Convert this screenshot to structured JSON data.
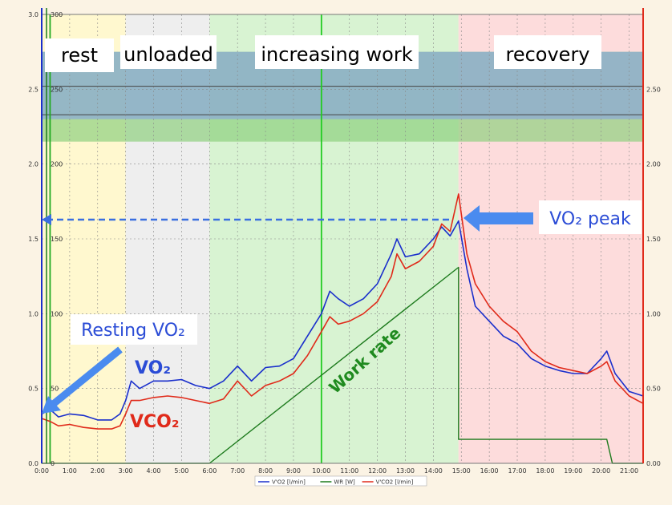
{
  "chart_data": {
    "type": "line",
    "x_unit": "time (mm:ss)",
    "x_ticks": [
      "0:00",
      "1:00",
      "2:00",
      "3:00",
      "4:00",
      "5:00",
      "6:00",
      "7:00",
      "8:00",
      "9:00",
      "10:00",
      "11:00",
      "12:00",
      "13:00",
      "14:00",
      "15:00",
      "16:00",
      "17:00",
      "18:00",
      "19:00",
      "20:00",
      "21:00"
    ],
    "xlim": [
      0,
      21.5
    ],
    "y_left_ticks": [
      "0.0",
      "0.5",
      "1.0",
      "1.5",
      "2.0",
      "2.5",
      "3.0"
    ],
    "y_left_lim": [
      0,
      3.0
    ],
    "y_mid_ticks": [
      "0",
      "50",
      "100",
      "150",
      "200",
      "250",
      "300"
    ],
    "y_mid_lim": [
      0,
      300
    ],
    "y_right_ticks": [
      "0.00",
      "0.50",
      "1.00",
      "1.50",
      "2.00",
      "2.50"
    ],
    "phases": [
      {
        "label": "rest",
        "start": 0,
        "end": 3,
        "color": "#fff8cf"
      },
      {
        "label": "unloaded",
        "start": 3,
        "end": 6,
        "color": "#eeeeee"
      },
      {
        "label": "increasing work",
        "start": 6,
        "end": 14.9,
        "color": "#d8f3d2"
      },
      {
        "label": "recovery",
        "start": 14.9,
        "end": 21.5,
        "color": "#fddcdc"
      }
    ],
    "threshold_bands": [
      {
        "low": 2.15,
        "high": 2.75,
        "color": "#8fd07f"
      },
      {
        "low": 2.3,
        "high": 2.75,
        "color": "#8aa6d8"
      }
    ],
    "series": [
      {
        "name": "V'O2 [l/min]",
        "color": "#1a2fcc",
        "axis": "left",
        "x": [
          0,
          0.3,
          0.6,
          1,
          1.5,
          2,
          2.5,
          2.8,
          3,
          3.2,
          3.5,
          4,
          4.5,
          5,
          5.5,
          6,
          6.5,
          7,
          7.5,
          8,
          8.5,
          9,
          9.5,
          10,
          10.3,
          10.6,
          11,
          11.5,
          12,
          12.5,
          12.7,
          13,
          13.5,
          14,
          14.3,
          14.6,
          14.9,
          15.2,
          15.5,
          16,
          16.5,
          17,
          17.5,
          18,
          18.5,
          19,
          19.5,
          20,
          20.2,
          20.5,
          21,
          21.5
        ],
        "y": [
          0.33,
          0.36,
          0.31,
          0.33,
          0.32,
          0.29,
          0.29,
          0.33,
          0.42,
          0.55,
          0.5,
          0.55,
          0.55,
          0.56,
          0.52,
          0.5,
          0.55,
          0.65,
          0.55,
          0.64,
          0.65,
          0.7,
          0.85,
          1.0,
          1.15,
          1.1,
          1.05,
          1.1,
          1.2,
          1.4,
          1.5,
          1.38,
          1.4,
          1.5,
          1.58,
          1.52,
          1.62,
          1.3,
          1.05,
          0.95,
          0.85,
          0.8,
          0.7,
          0.65,
          0.62,
          0.6,
          0.6,
          0.7,
          0.75,
          0.6,
          0.48,
          0.45
        ]
      },
      {
        "name": "V'CO2 [l/min]",
        "color": "#e02a1a",
        "axis": "left",
        "x": [
          0,
          0.3,
          0.6,
          1,
          1.5,
          2,
          2.5,
          2.8,
          3,
          3.2,
          3.5,
          4,
          4.5,
          5,
          5.5,
          6,
          6.5,
          7,
          7.5,
          8,
          8.5,
          9,
          9.5,
          10,
          10.3,
          10.6,
          11,
          11.5,
          12,
          12.5,
          12.7,
          13,
          13.5,
          14,
          14.3,
          14.6,
          14.9,
          15.2,
          15.5,
          16,
          16.5,
          17,
          17.5,
          18,
          18.5,
          19,
          19.5,
          20,
          20.2,
          20.5,
          21,
          21.5
        ],
        "y": [
          0.3,
          0.28,
          0.25,
          0.26,
          0.24,
          0.23,
          0.23,
          0.25,
          0.33,
          0.42,
          0.42,
          0.44,
          0.45,
          0.44,
          0.42,
          0.4,
          0.43,
          0.55,
          0.45,
          0.52,
          0.55,
          0.6,
          0.72,
          0.88,
          0.98,
          0.93,
          0.95,
          1.0,
          1.08,
          1.25,
          1.4,
          1.3,
          1.35,
          1.45,
          1.6,
          1.55,
          1.8,
          1.4,
          1.2,
          1.05,
          0.95,
          0.88,
          0.75,
          0.68,
          0.64,
          0.62,
          0.6,
          0.65,
          0.68,
          0.55,
          0.45,
          0.4
        ]
      },
      {
        "name": "WR [W]",
        "color": "#1c7a1c",
        "axis": "mid",
        "x": [
          0,
          6,
          14.9,
          14.9,
          15.1,
          20.2,
          20.4,
          21.5
        ],
        "y": [
          0,
          0,
          131,
          16,
          16,
          16,
          0,
          0
        ]
      }
    ],
    "reference_lines": [
      {
        "x": 0.3,
        "color": "#22aa22"
      },
      {
        "x": 10.0,
        "color": "#22cc22"
      }
    ]
  },
  "phase_labels": {
    "rest": "rest",
    "unloaded": "unloaded",
    "increasing": "increasing work",
    "recovery": "recovery"
  },
  "annotations": {
    "vo2_peak": "VO₂ peak",
    "resting_vo2": "Resting VO₂",
    "vo2_label": "VO₂",
    "vco2_label": "VCO₂",
    "work_rate": "Work rate",
    "peak_value": 1.62
  },
  "legend": {
    "items": [
      {
        "label": "V'O2 [l/min]",
        "color": "#1a2fcc"
      },
      {
        "label": "WR [W]",
        "color": "#1c7a1c"
      },
      {
        "label": "V'CO2 [l/min]",
        "color": "#e02a1a"
      }
    ]
  }
}
